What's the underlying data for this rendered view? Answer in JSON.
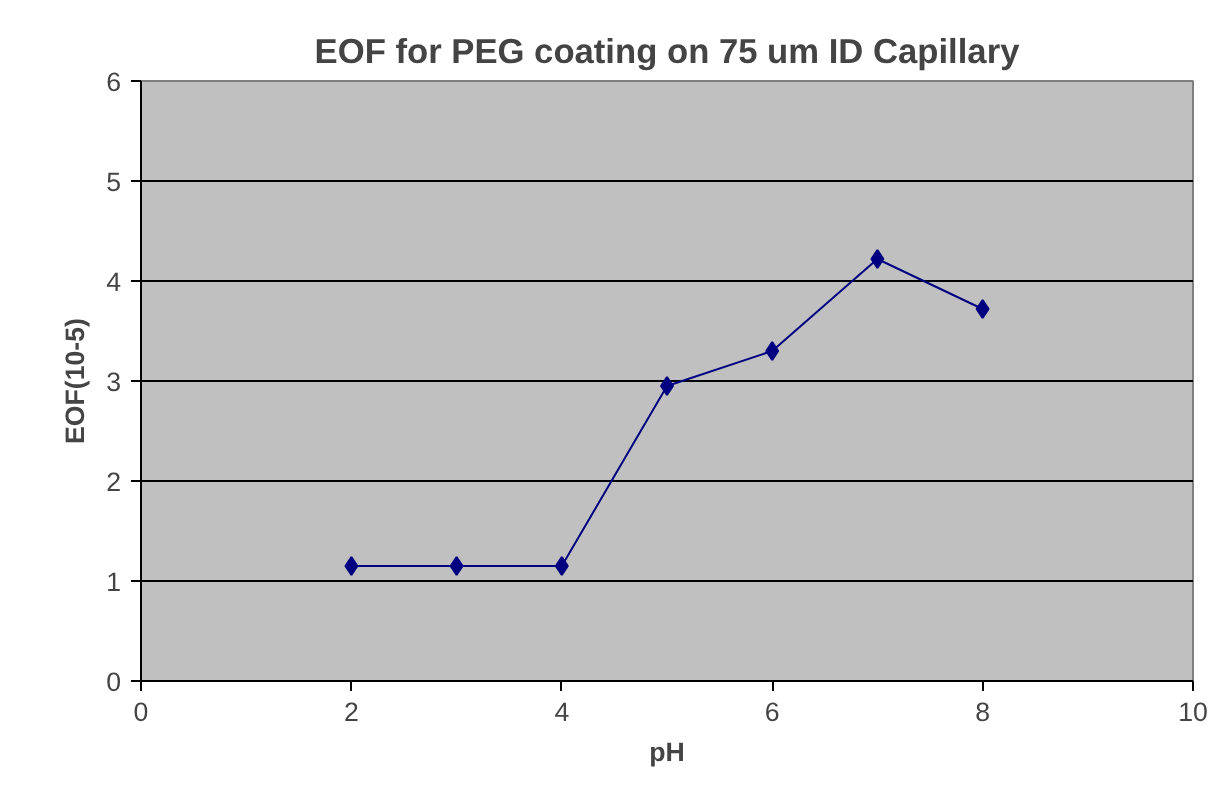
{
  "chart_data": {
    "type": "line",
    "title": "EOF for PEG coating on 75 um ID Capillary",
    "xlabel": "pH",
    "ylabel": "EOF(10-5)",
    "x": [
      2,
      3,
      4,
      5,
      6,
      7,
      8
    ],
    "series": [
      {
        "color": "#000080",
        "values": [
          1.15,
          1.15,
          1.15,
          2.95,
          3.3,
          4.22,
          3.72
        ]
      }
    ],
    "xlim": [
      0,
      10
    ],
    "xticks": [
      0,
      2,
      4,
      6,
      8,
      10
    ],
    "ylim": [
      0,
      6
    ],
    "yticks": [
      0,
      1,
      2,
      3,
      4,
      5,
      6
    ],
    "grid": "y",
    "marker": "diamond",
    "line_style": "solid"
  }
}
